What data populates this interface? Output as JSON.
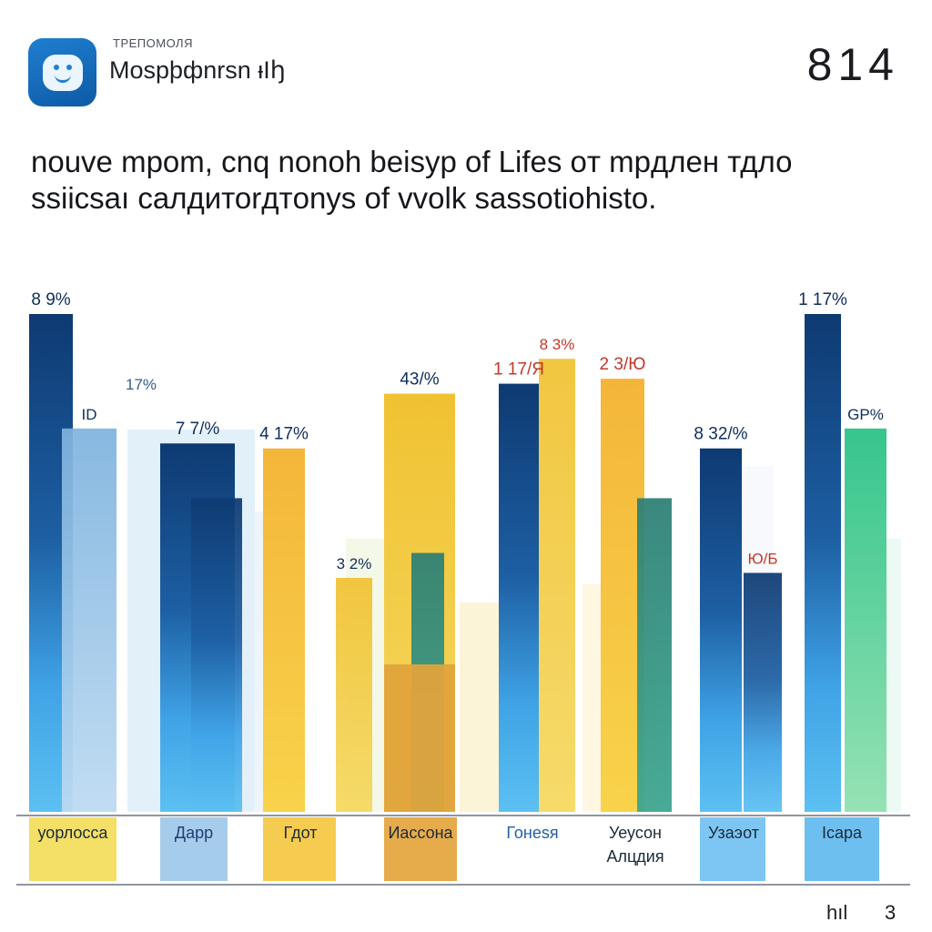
{
  "header": {
    "kicker": "ТРЕПОМОЛЯ",
    "app_name": "Mospþфnrsn ᵻΙꜧ",
    "number": "814"
  },
  "headline": {
    "line1": "nouve mpom, cnq nonoh beisyp of Lifes oт mpдлен тдло",
    "line2": "ssiicsaı caлдитоrдтonys of vvolk sassotiohisto."
  },
  "footer": {
    "left": "hıl",
    "right": "3"
  },
  "colors": {
    "navy": "#123f7a",
    "light_blue": "#5db8ee",
    "yellow": "#f2c83a",
    "orange": "#e3a33a",
    "teal": "#2a8f7e",
    "green": "#2ecc8a",
    "axis": "#6b7280"
  },
  "chart_data": {
    "type": "bar",
    "title": "",
    "xlabel": "",
    "ylabel": "",
    "ylim": [
      0,
      100
    ],
    "grid": false,
    "categories": [
      "уорлосcа",
      "Дарр",
      "Гдот",
      "Иассона",
      "Гонеѕя",
      "Уеусон Алцдия",
      "Узаэот",
      "Ісара"
    ],
    "series": [
      {
        "values": [
          100,
          74,
          73,
          84,
          86,
          87,
          73,
          100
        ],
        "data_labels": [
          "8 9%",
          "7 7/%",
          "4 17%",
          "43/%",
          "1 17/Я",
          "2 3/Ю",
          "8 32/%",
          "1 17%"
        ]
      },
      {
        "values": [
          77,
          63,
          47,
          52,
          91,
          63,
          48,
          77
        ],
        "data_labels": [
          "ID",
          "",
          "3 2%",
          "",
          "8 3%",
          "",
          "Ю/Б",
          "GP%"
        ]
      }
    ],
    "extra_labels": [
      "17%"
    ]
  }
}
